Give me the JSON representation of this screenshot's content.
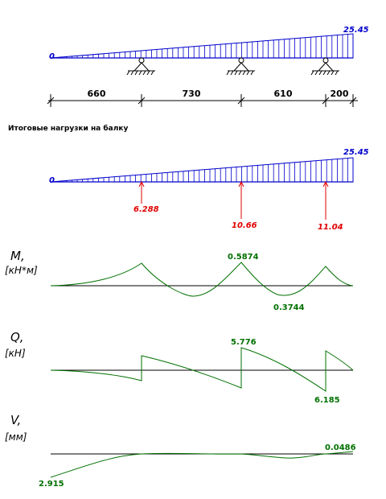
{
  "colors": {
    "load": "#0000cc",
    "reaction": "#e00000",
    "curve": "#007000",
    "axis": "#000000"
  },
  "top_load": {
    "start_label": "0",
    "end_label": "25.45"
  },
  "dimensions": [
    "660",
    "730",
    "610",
    "200"
  ],
  "section_caption": "Итоговые нагрузки на балку",
  "result_load": {
    "start_label": "0",
    "end_label": "25.45"
  },
  "reactions": [
    "6.288",
    "10.66",
    "11.04"
  ],
  "plots": {
    "moment": {
      "title": "M,",
      "unit": "[кН*м]",
      "max_label": "0.5874",
      "min_label": "0.3744"
    },
    "shear": {
      "title": "Q,",
      "unit": "[кН]",
      "max_label": "5.776",
      "min_label": "6.185"
    },
    "deflection": {
      "title": "V,",
      "unit": "[мм]",
      "max_label": "0.0486",
      "min_label": "2.915"
    }
  }
}
